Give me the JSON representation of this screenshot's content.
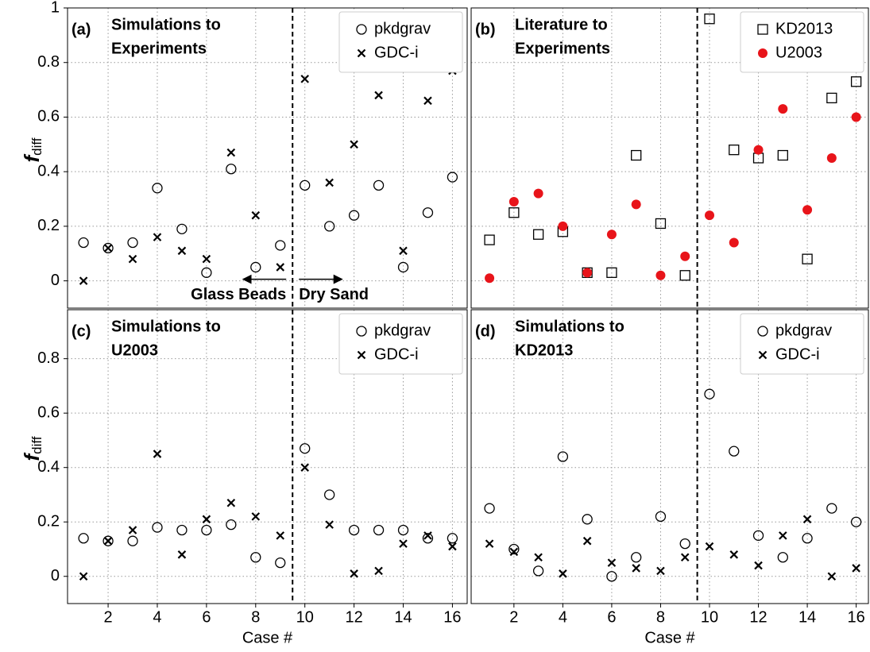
{
  "chart_data": [
    {
      "type": "scatter",
      "label": "(a)",
      "title": [
        "Simulations to",
        "Experiments"
      ],
      "ylabel": "f",
      "ylabel_sub": "diff",
      "x": [
        1,
        2,
        3,
        4,
        5,
        6,
        7,
        8,
        9,
        10,
        11,
        12,
        13,
        14,
        15,
        16
      ],
      "series": [
        {
          "name": "pkdgrav",
          "color": "#000000",
          "marker": "circle",
          "values": [
            0.14,
            0.12,
            0.14,
            0.34,
            0.19,
            0.03,
            0.41,
            0.05,
            0.13,
            0.35,
            0.2,
            0.24,
            0.35,
            0.05,
            0.25,
            0.38
          ]
        },
        {
          "name": "GDC-i",
          "color": "#000000",
          "marker": "x",
          "values": [
            0.0,
            0.12,
            0.08,
            0.16,
            0.11,
            0.08,
            0.47,
            0.24,
            0.05,
            0.74,
            0.36,
            0.5,
            0.68,
            0.11,
            0.66,
            0.77
          ]
        }
      ],
      "annotations": [
        "Glass Beads",
        "Dry Sand"
      ],
      "vline": 9.5,
      "xlim": [
        0.35,
        16.6
      ],
      "xticks": [
        2,
        4,
        6,
        8,
        10,
        12,
        14,
        16
      ],
      "ylim": [
        -0.1,
        1.0
      ],
      "yticks": [
        0,
        0.2,
        0.4,
        0.6,
        0.8,
        1.0
      ],
      "grid": true,
      "legend": "upper right"
    },
    {
      "type": "scatter",
      "label": "(b)",
      "title": [
        "Literature to",
        "Experiments"
      ],
      "x": [
        1,
        2,
        3,
        4,
        5,
        6,
        7,
        8,
        9,
        10,
        11,
        12,
        13,
        14,
        15,
        16
      ],
      "series": [
        {
          "name": "KD2013",
          "color": "#000000",
          "marker": "square",
          "values": [
            0.15,
            0.25,
            0.17,
            0.18,
            0.03,
            0.03,
            0.46,
            0.21,
            0.02,
            0.96,
            0.48,
            0.45,
            0.46,
            0.08,
            0.67,
            0.73
          ]
        },
        {
          "name": "U2003",
          "color": "#e8141a",
          "marker": "dot",
          "values": [
            0.01,
            0.29,
            0.32,
            0.2,
            0.03,
            0.17,
            0.28,
            0.02,
            0.09,
            0.24,
            0.14,
            0.48,
            0.63,
            0.26,
            0.45,
            0.6
          ]
        }
      ],
      "vline": 9.5,
      "xlim": [
        0.25,
        16.5
      ],
      "xticks": [
        2,
        4,
        6,
        8,
        10,
        12,
        14,
        16
      ],
      "ylim": [
        -0.1,
        1.0
      ],
      "yticks": [
        0,
        0.2,
        0.4,
        0.6,
        0.8,
        1.0
      ],
      "grid": true,
      "legend": "upper right"
    },
    {
      "type": "scatter",
      "label": "(c)",
      "title": [
        "Simulations to",
        "U2003"
      ],
      "ylabel": "f",
      "ylabel_sub": "diff",
      "xlabel": "Case #",
      "x": [
        1,
        2,
        3,
        4,
        5,
        6,
        7,
        8,
        9,
        10,
        11,
        12,
        13,
        14,
        15,
        16
      ],
      "series": [
        {
          "name": "pkdgrav",
          "color": "#000000",
          "marker": "circle",
          "values": [
            0.14,
            0.13,
            0.13,
            0.18,
            0.17,
            0.17,
            0.19,
            0.07,
            0.05,
            0.47,
            0.3,
            0.17,
            0.17,
            0.17,
            0.14,
            0.14
          ]
        },
        {
          "name": "GDC-i",
          "color": "#000000",
          "marker": "x",
          "values": [
            0.0,
            0.13,
            0.17,
            0.45,
            0.08,
            0.21,
            0.27,
            0.22,
            0.15,
            0.4,
            0.19,
            0.01,
            0.02,
            0.12,
            0.15,
            0.11
          ]
        }
      ],
      "vline": 9.5,
      "xlim": [
        0.35,
        16.6
      ],
      "xticks": [
        2,
        4,
        6,
        8,
        10,
        12,
        14,
        16
      ],
      "ylim": [
        -0.1,
        0.98
      ],
      "yticks": [
        0,
        0.2,
        0.4,
        0.6,
        0.8
      ],
      "grid": true,
      "legend": "upper right"
    },
    {
      "type": "scatter",
      "label": "(d)",
      "title": [
        "Simulations to",
        "KD2013"
      ],
      "xlabel": "Case #",
      "x": [
        1,
        2,
        3,
        4,
        5,
        6,
        7,
        8,
        9,
        10,
        11,
        12,
        13,
        14,
        15,
        16
      ],
      "series": [
        {
          "name": "pkdgrav",
          "color": "#000000",
          "marker": "circle",
          "values": [
            0.25,
            0.1,
            0.02,
            0.44,
            0.21,
            0.0,
            0.07,
            0.22,
            0.12,
            0.67,
            0.46,
            0.15,
            0.07,
            0.14,
            0.25,
            0.2
          ]
        },
        {
          "name": "GDC-i",
          "color": "#000000",
          "marker": "x",
          "values": [
            0.12,
            0.09,
            0.07,
            0.01,
            0.13,
            0.05,
            0.03,
            0.02,
            0.07,
            0.11,
            0.08,
            0.04,
            0.15,
            0.21,
            0.0,
            0.03
          ]
        }
      ],
      "vline": 9.5,
      "xlim": [
        0.25,
        16.5
      ],
      "xticks": [
        2,
        4,
        6,
        8,
        10,
        12,
        14,
        16
      ],
      "ylim": [
        -0.1,
        0.98
      ],
      "yticks": [
        0,
        0.2,
        0.4,
        0.6,
        0.8
      ],
      "grid": true,
      "legend": "upper right"
    }
  ]
}
